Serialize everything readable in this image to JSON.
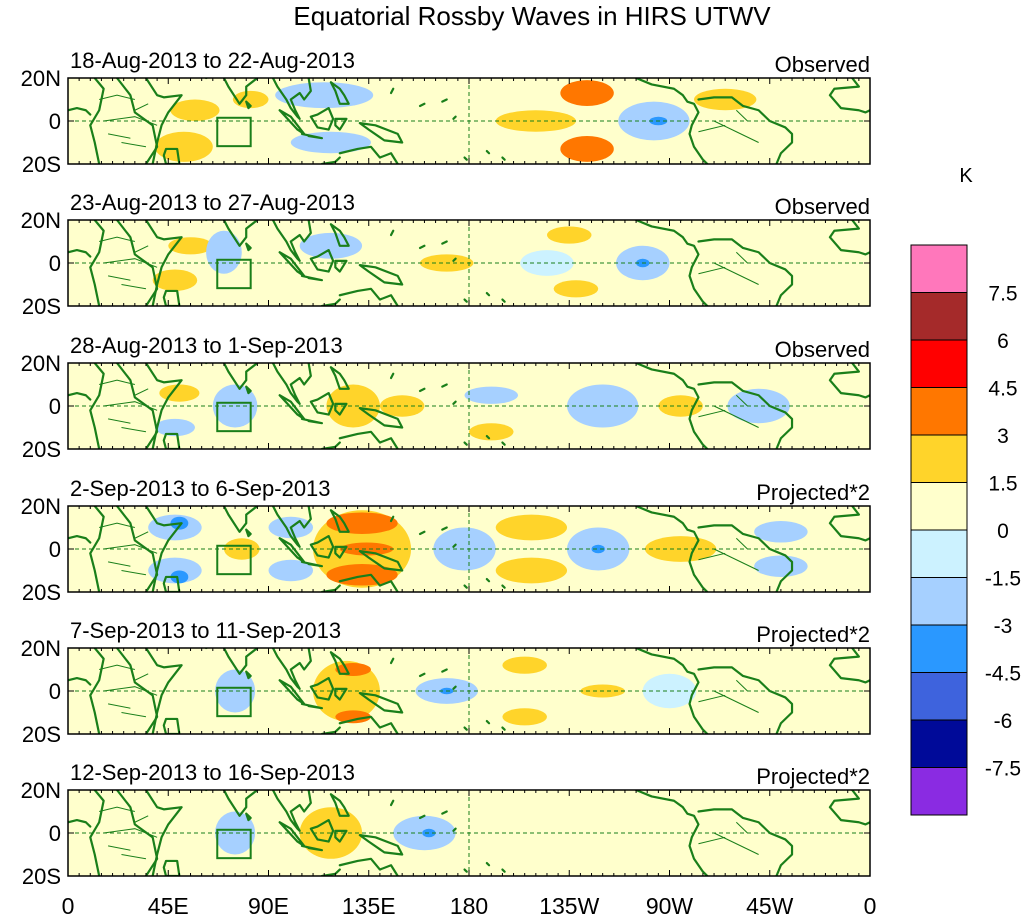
{
  "chart_data": {
    "type": "heatmap",
    "title": "Equatorial Rossby Waves in HIRS UTWV",
    "units": "K",
    "xticks": [
      "0",
      "45E",
      "90E",
      "135E",
      "180",
      "135W",
      "90W",
      "45W",
      "0"
    ],
    "yticks": [
      "20N",
      "0",
      "20S"
    ],
    "xrange_deg": [
      0,
      360
    ],
    "yrange_deg": [
      -20,
      20
    ],
    "colorbar": {
      "labels": [
        "7.5",
        "6",
        "4.5",
        "3",
        "1.5",
        "0",
        "-1.5",
        "-3",
        "-4.5",
        "-6",
        "-7.5"
      ],
      "colors": [
        "#ff77bb",
        "#a52a2a",
        "#ff0000",
        "#ff7700",
        "#ffd42a",
        "#ffffcc",
        "#ccf2ff",
        "#a6d0ff",
        "#2a98ff",
        "#3e63dd",
        "#000a99",
        "#8a2be2"
      ]
    },
    "panels": [
      {
        "date": "18-Aug-2013 to 22-Aug-2013",
        "label": "Observed",
        "features": [
          {
            "lon": 57,
            "lat": 5,
            "rx": 11,
            "ry": 5,
            "value": 2
          },
          {
            "lon": 52,
            "lat": -12,
            "rx": 13,
            "ry": 7,
            "value": 2
          },
          {
            "lon": 82,
            "lat": 10,
            "rx": 8,
            "ry": 4,
            "value": 2
          },
          {
            "lon": 115,
            "lat": 12,
            "rx": 22,
            "ry": 6,
            "value": -2
          },
          {
            "lon": 118,
            "lat": -10,
            "rx": 18,
            "ry": 5,
            "value": -2
          },
          {
            "lon": 210,
            "lat": 0,
            "rx": 18,
            "ry": 5,
            "value": 2
          },
          {
            "lon": 233,
            "lat": 13,
            "rx": 12,
            "ry": 6,
            "value": 3.5
          },
          {
            "lon": 233,
            "lat": -13,
            "rx": 12,
            "ry": 6,
            "value": 3.5
          },
          {
            "lon": 263,
            "lat": 0,
            "rx": 16,
            "ry": 9,
            "value": -2.5
          },
          {
            "lon": 265,
            "lat": 0,
            "rx": 4,
            "ry": 2,
            "value": -4
          },
          {
            "lon": 295,
            "lat": 10,
            "rx": 14,
            "ry": 5,
            "value": 2
          },
          {
            "lon": 330,
            "lat": 0,
            "rx": 22,
            "ry": 7,
            "value": 0.5
          }
        ]
      },
      {
        "date": "23-Aug-2013 to 27-Aug-2013",
        "label": "Observed",
        "features": [
          {
            "lon": 55,
            "lat": 8,
            "rx": 10,
            "ry": 4,
            "value": 2
          },
          {
            "lon": 48,
            "lat": -8,
            "rx": 10,
            "ry": 5,
            "value": 2
          },
          {
            "lon": 70,
            "lat": 5,
            "rx": 8,
            "ry": 10,
            "value": -2
          },
          {
            "lon": 118,
            "lat": 8,
            "rx": 14,
            "ry": 6,
            "value": -2
          },
          {
            "lon": 170,
            "lat": 0,
            "rx": 12,
            "ry": 4,
            "value": 2
          },
          {
            "lon": 225,
            "lat": 13,
            "rx": 10,
            "ry": 4,
            "value": 2
          },
          {
            "lon": 228,
            "lat": -12,
            "rx": 10,
            "ry": 4,
            "value": 2
          },
          {
            "lon": 258,
            "lat": 0,
            "rx": 12,
            "ry": 8,
            "value": -2.5
          },
          {
            "lon": 258,
            "lat": 0,
            "rx": 3,
            "ry": 2,
            "value": -4
          },
          {
            "lon": 215,
            "lat": 0,
            "rx": 12,
            "ry": 6,
            "value": -1
          },
          {
            "lon": 300,
            "lat": 8,
            "rx": 14,
            "ry": 5,
            "value": 1
          }
        ]
      },
      {
        "date": "28-Aug-2013 to 1-Sep-2013",
        "label": "Observed",
        "features": [
          {
            "lon": 50,
            "lat": 6,
            "rx": 9,
            "ry": 4,
            "value": 2
          },
          {
            "lon": 48,
            "lat": -10,
            "rx": 9,
            "ry": 4,
            "value": -2
          },
          {
            "lon": 75,
            "lat": 0,
            "rx": 10,
            "ry": 10,
            "value": -2
          },
          {
            "lon": 128,
            "lat": 0,
            "rx": 12,
            "ry": 10,
            "value": 2
          },
          {
            "lon": 150,
            "lat": 0,
            "rx": 10,
            "ry": 5,
            "value": 2
          },
          {
            "lon": 190,
            "lat": 5,
            "rx": 12,
            "ry": 4,
            "value": -2
          },
          {
            "lon": 190,
            "lat": -12,
            "rx": 10,
            "ry": 4,
            "value": 2
          },
          {
            "lon": 240,
            "lat": 0,
            "rx": 16,
            "ry": 10,
            "value": -2
          },
          {
            "lon": 275,
            "lat": 0,
            "rx": 10,
            "ry": 5,
            "value": 2
          },
          {
            "lon": 310,
            "lat": 0,
            "rx": 14,
            "ry": 8,
            "value": -2
          }
        ]
      },
      {
        "date": "2-Sep-2013 to 6-Sep-2013",
        "label": "Projected*2",
        "features": [
          {
            "lon": 48,
            "lat": 10,
            "rx": 12,
            "ry": 6,
            "value": -3
          },
          {
            "lon": 48,
            "lat": -10,
            "rx": 12,
            "ry": 6,
            "value": -3
          },
          {
            "lon": 50,
            "lat": 12,
            "rx": 4,
            "ry": 3,
            "value": -4
          },
          {
            "lon": 50,
            "lat": -13,
            "rx": 4,
            "ry": 3,
            "value": -4
          },
          {
            "lon": 78,
            "lat": 0,
            "rx": 8,
            "ry": 5,
            "value": 2
          },
          {
            "lon": 100,
            "lat": 10,
            "rx": 10,
            "ry": 5,
            "value": -2
          },
          {
            "lon": 100,
            "lat": -10,
            "rx": 10,
            "ry": 5,
            "value": -2
          },
          {
            "lon": 132,
            "lat": 0,
            "rx": 22,
            "ry": 18,
            "value": 2
          },
          {
            "lon": 132,
            "lat": 12,
            "rx": 16,
            "ry": 5,
            "value": 3.5
          },
          {
            "lon": 132,
            "lat": -12,
            "rx": 16,
            "ry": 5,
            "value": 3.5
          },
          {
            "lon": 134,
            "lat": 0,
            "rx": 12,
            "ry": 3,
            "value": 3.5
          },
          {
            "lon": 178,
            "lat": 0,
            "rx": 14,
            "ry": 10,
            "value": -2
          },
          {
            "lon": 208,
            "lat": 10,
            "rx": 16,
            "ry": 6,
            "value": 2
          },
          {
            "lon": 208,
            "lat": -10,
            "rx": 16,
            "ry": 6,
            "value": 2
          },
          {
            "lon": 238,
            "lat": 0,
            "rx": 14,
            "ry": 10,
            "value": -2
          },
          {
            "lon": 238,
            "lat": 0,
            "rx": 3,
            "ry": 2,
            "value": -4
          },
          {
            "lon": 275,
            "lat": 0,
            "rx": 16,
            "ry": 6,
            "value": 2
          },
          {
            "lon": 320,
            "lat": 8,
            "rx": 12,
            "ry": 5,
            "value": -2
          },
          {
            "lon": 320,
            "lat": -8,
            "rx": 12,
            "ry": 5,
            "value": -2
          }
        ]
      },
      {
        "date": "7-Sep-2013 to 11-Sep-2013",
        "label": "Projected*2",
        "features": [
          {
            "lon": 52,
            "lat": 5,
            "rx": 10,
            "ry": 5,
            "value": 1
          },
          {
            "lon": 75,
            "lat": 0,
            "rx": 9,
            "ry": 10,
            "value": -2
          },
          {
            "lon": 125,
            "lat": 0,
            "rx": 15,
            "ry": 14,
            "value": 2
          },
          {
            "lon": 128,
            "lat": -12,
            "rx": 8,
            "ry": 3,
            "value": 3.5
          },
          {
            "lon": 128,
            "lat": 10,
            "rx": 8,
            "ry": 3,
            "value": 3.5
          },
          {
            "lon": 170,
            "lat": 0,
            "rx": 14,
            "ry": 6,
            "value": -2
          },
          {
            "lon": 170,
            "lat": 0,
            "rx": 3,
            "ry": 1.5,
            "value": -4
          },
          {
            "lon": 205,
            "lat": 12,
            "rx": 10,
            "ry": 4,
            "value": 2
          },
          {
            "lon": 205,
            "lat": -12,
            "rx": 10,
            "ry": 4,
            "value": 2
          },
          {
            "lon": 240,
            "lat": 0,
            "rx": 10,
            "ry": 3,
            "value": 2
          },
          {
            "lon": 270,
            "lat": 0,
            "rx": 12,
            "ry": 8,
            "value": -1
          },
          {
            "lon": 320,
            "lat": 0,
            "rx": 14,
            "ry": 8,
            "value": 1
          }
        ]
      },
      {
        "date": "12-Sep-2013 to 16-Sep-2013",
        "label": "Projected*2",
        "features": [
          {
            "lon": 45,
            "lat": 5,
            "rx": 10,
            "ry": 5,
            "value": 1
          },
          {
            "lon": 75,
            "lat": 0,
            "rx": 9,
            "ry": 10,
            "value": -2
          },
          {
            "lon": 118,
            "lat": 0,
            "rx": 14,
            "ry": 12,
            "value": 2
          },
          {
            "lon": 160,
            "lat": 0,
            "rx": 14,
            "ry": 8,
            "value": -2
          },
          {
            "lon": 162,
            "lat": 0,
            "rx": 3,
            "ry": 2,
            "value": -4
          },
          {
            "lon": 195,
            "lat": 8,
            "rx": 12,
            "ry": 5,
            "value": 1
          },
          {
            "lon": 220,
            "lat": -8,
            "rx": 12,
            "ry": 5,
            "value": 1
          },
          {
            "lon": 300,
            "lat": 0,
            "rx": 20,
            "ry": 8,
            "value": 1
          }
        ]
      }
    ]
  }
}
